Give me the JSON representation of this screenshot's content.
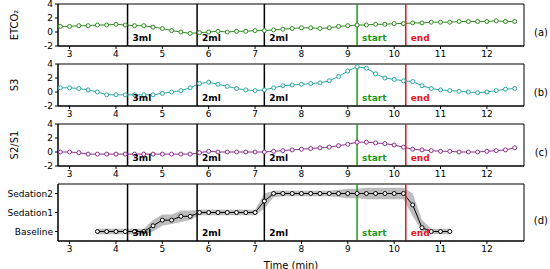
{
  "chart_data": [
    {
      "type": "line",
      "panel": "(a)",
      "y_label": "ETCO₂",
      "color": "#2e8b1e",
      "marker": "circle",
      "line_style": "solid",
      "xlim": [
        2.75,
        12.8
      ],
      "xticks": [
        3,
        4,
        5,
        6,
        7,
        8,
        9,
        10,
        11,
        12
      ],
      "ylim": [
        -2,
        4
      ],
      "yticks": [
        -2,
        0,
        2,
        4
      ],
      "x": [
        2.8,
        3.0,
        3.2,
        3.4,
        3.6,
        3.8,
        4.0,
        4.2,
        4.4,
        4.6,
        4.8,
        5.0,
        5.2,
        5.4,
        5.6,
        5.8,
        6.0,
        6.2,
        6.4,
        6.6,
        6.8,
        7.0,
        7.2,
        7.4,
        7.6,
        7.8,
        8.0,
        8.2,
        8.4,
        8.6,
        8.8,
        9.0,
        9.2,
        9.4,
        9.6,
        9.8,
        10.0,
        10.2,
        10.4,
        10.6,
        10.8,
        11.0,
        11.2,
        11.4,
        11.6,
        11.8,
        12.0,
        12.2,
        12.4,
        12.6
      ],
      "values": [
        0.8,
        0.8,
        0.9,
        0.9,
        1.0,
        1.0,
        1.1,
        1.0,
        0.9,
        0.9,
        0.7,
        0.5,
        0.2,
        0.0,
        -0.2,
        -0.1,
        0.0,
        0.1,
        0.0,
        0.1,
        0.1,
        0.2,
        0.2,
        0.3,
        0.4,
        0.5,
        0.6,
        0.6,
        0.5,
        0.6,
        0.8,
        0.9,
        1.0,
        1.0,
        1.1,
        1.1,
        1.2,
        1.2,
        1.3,
        1.3,
        1.4,
        1.4,
        1.4,
        1.5,
        1.5,
        1.5,
        1.5,
        1.6,
        1.5,
        1.5
      ],
      "annotations": [
        {
          "x": 4.25,
          "label": "3ml",
          "color": "#000000"
        },
        {
          "x": 5.75,
          "label": "2ml",
          "color": "#000000"
        },
        {
          "x": 7.2,
          "label": "2ml",
          "color": "#000000"
        },
        {
          "x": 9.2,
          "label": "start",
          "color": "#1a9a1a"
        },
        {
          "x": 10.25,
          "label": "end",
          "color": "#e8141c"
        }
      ]
    },
    {
      "type": "line",
      "panel": "(b)",
      "y_label": "S3",
      "color": "#2aa7a7",
      "marker": "circle",
      "line_style": "solid",
      "xlim": [
        2.75,
        12.8
      ],
      "xticks": [
        3,
        4,
        5,
        6,
        7,
        8,
        9,
        10,
        11,
        12
      ],
      "ylim": [
        -2,
        4
      ],
      "yticks": [
        -2,
        0,
        2,
        4
      ],
      "x": [
        2.8,
        3.0,
        3.2,
        3.4,
        3.6,
        3.8,
        4.0,
        4.2,
        4.4,
        4.6,
        4.8,
        5.0,
        5.2,
        5.4,
        5.6,
        5.8,
        6.0,
        6.2,
        6.4,
        6.6,
        6.8,
        7.0,
        7.2,
        7.4,
        7.6,
        7.8,
        8.0,
        8.2,
        8.4,
        8.6,
        8.8,
        9.0,
        9.2,
        9.4,
        9.6,
        9.8,
        10.0,
        10.2,
        10.4,
        10.6,
        10.8,
        11.0,
        11.2,
        11.4,
        11.6,
        11.8,
        12.0,
        12.2,
        12.4,
        12.6
      ],
      "values": [
        0.6,
        0.6,
        0.5,
        0.3,
        0.0,
        -0.4,
        -0.4,
        -0.4,
        -0.4,
        -0.4,
        -0.4,
        -0.2,
        0.0,
        0.2,
        0.6,
        1.2,
        1.4,
        1.1,
        0.8,
        0.5,
        0.3,
        0.2,
        0.3,
        0.6,
        0.9,
        1.0,
        1.1,
        1.2,
        1.3,
        1.6,
        2.2,
        3.0,
        3.6,
        3.4,
        2.6,
        2.0,
        1.8,
        1.6,
        1.5,
        0.9,
        0.5,
        0.3,
        0.2,
        0.1,
        0.0,
        -0.1,
        0.0,
        0.2,
        0.4,
        0.5
      ],
      "annotations": [
        {
          "x": 4.25,
          "label": "3ml",
          "color": "#000000"
        },
        {
          "x": 5.75,
          "label": "2ml",
          "color": "#000000"
        },
        {
          "x": 7.2,
          "label": "2ml",
          "color": "#000000"
        },
        {
          "x": 9.2,
          "label": "start",
          "color": "#1a9a1a"
        },
        {
          "x": 10.25,
          "label": "end",
          "color": "#e8141c"
        }
      ]
    },
    {
      "type": "line",
      "panel": "(c)",
      "y_label": "S2/S1",
      "color": "#8b2e8b",
      "marker": "circle",
      "line_style": "solid",
      "xlim": [
        2.75,
        12.8
      ],
      "xticks": [
        3,
        4,
        5,
        6,
        7,
        8,
        9,
        10,
        11,
        12
      ],
      "ylim": [
        -2,
        4
      ],
      "yticks": [
        -2,
        0,
        2,
        4
      ],
      "x": [
        2.8,
        3.0,
        3.2,
        3.4,
        3.6,
        3.8,
        4.0,
        4.2,
        4.4,
        4.6,
        4.8,
        5.0,
        5.2,
        5.4,
        5.6,
        5.8,
        6.0,
        6.2,
        6.4,
        6.6,
        6.8,
        7.0,
        7.2,
        7.4,
        7.6,
        7.8,
        8.0,
        8.2,
        8.4,
        8.6,
        8.8,
        9.0,
        9.2,
        9.4,
        9.6,
        9.8,
        10.0,
        10.2,
        10.4,
        10.6,
        10.8,
        11.0,
        11.2,
        11.4,
        11.6,
        11.8,
        12.0,
        12.2,
        12.4,
        12.6
      ],
      "values": [
        0.0,
        0.0,
        -0.1,
        -0.3,
        -0.3,
        -0.3,
        -0.3,
        -0.3,
        -0.3,
        -0.3,
        -0.3,
        -0.3,
        -0.3,
        -0.3,
        -0.3,
        -0.1,
        0.1,
        0.0,
        0.0,
        0.0,
        0.0,
        0.0,
        0.0,
        0.1,
        0.2,
        0.3,
        0.4,
        0.5,
        0.6,
        0.7,
        0.9,
        1.1,
        1.4,
        1.4,
        1.3,
        1.2,
        1.0,
        0.7,
        0.4,
        0.3,
        0.2,
        0.1,
        0.1,
        0.0,
        0.0,
        0.0,
        0.1,
        0.2,
        0.3,
        0.6
      ],
      "annotations": [
        {
          "x": 4.25,
          "label": "3ml",
          "color": "#000000"
        },
        {
          "x": 5.75,
          "label": "2ml",
          "color": "#000000"
        },
        {
          "x": 7.2,
          "label": "2ml",
          "color": "#000000"
        },
        {
          "x": 9.2,
          "label": "start",
          "color": "#1a9a1a"
        },
        {
          "x": 10.25,
          "label": "end",
          "color": "#e8141c"
        }
      ]
    },
    {
      "type": "line",
      "panel": "(d)",
      "x_label": "Time (min)",
      "color": "#000000",
      "marker": "circle",
      "line_style": "solid",
      "band_color": "#bdbdbd",
      "xlim": [
        2.75,
        12.8
      ],
      "xticks": [
        3,
        4,
        5,
        6,
        7,
        8,
        9,
        10,
        11,
        12
      ],
      "ylim": [
        -0.5,
        2.5
      ],
      "yticks": [
        {
          "value": 0,
          "label": "Baseline"
        },
        {
          "value": 1,
          "label": "Sedation1"
        },
        {
          "value": 2,
          "label": "Sedation2"
        }
      ],
      "x": [
        2.8,
        3.0,
        3.2,
        3.4,
        3.6,
        3.8,
        4.0,
        4.2,
        4.4,
        4.6,
        4.8,
        5.0,
        5.2,
        5.4,
        5.6,
        5.8,
        6.0,
        6.2,
        6.4,
        6.6,
        6.8,
        7.0,
        7.2,
        7.4,
        7.6,
        7.8,
        8.0,
        8.2,
        8.4,
        8.6,
        8.8,
        9.0,
        9.2,
        9.4,
        9.6,
        9.8,
        10.0,
        10.2,
        10.4,
        10.6,
        10.8,
        11.0,
        11.2,
        11.4,
        11.6,
        11.8,
        12.0,
        12.2,
        12.4,
        12.6
      ],
      "values": [
        null,
        null,
        null,
        null,
        0,
        0,
        0,
        0,
        0,
        0,
        0.3,
        0.6,
        0.6,
        0.8,
        0.8,
        1,
        1,
        1,
        1,
        1,
        1,
        1,
        1.6,
        2,
        2,
        2,
        2,
        2,
        2,
        2,
        2,
        2,
        2,
        2,
        2,
        2,
        2,
        2,
        1.4,
        0.2,
        0,
        0,
        0,
        null,
        null,
        null,
        null,
        null,
        null,
        null
      ],
      "band_lower": [
        null,
        null,
        null,
        null,
        -0.15,
        -0.15,
        -0.15,
        -0.15,
        -0.15,
        -0.15,
        0.0,
        0.3,
        0.4,
        0.5,
        0.6,
        0.85,
        0.85,
        0.85,
        0.85,
        0.85,
        0.85,
        0.85,
        1.2,
        1.8,
        1.85,
        1.85,
        1.85,
        1.85,
        1.85,
        1.85,
        1.8,
        1.75,
        1.75,
        1.7,
        1.7,
        1.7,
        1.7,
        1.7,
        0.8,
        0.0,
        -0.15,
        -0.15,
        -0.15,
        null,
        null,
        null,
        null,
        null,
        null,
        null
      ],
      "band_upper": [
        null,
        null,
        null,
        null,
        0.15,
        0.15,
        0.15,
        0.15,
        0.15,
        0.15,
        0.6,
        0.9,
        0.9,
        1.1,
        1.1,
        1.15,
        1.15,
        1.15,
        1.15,
        1.15,
        1.15,
        1.15,
        2.0,
        2.15,
        2.15,
        2.15,
        2.15,
        2.15,
        2.15,
        2.15,
        2.2,
        2.25,
        2.25,
        2.3,
        2.3,
        2.3,
        2.3,
        2.3,
        2.0,
        0.6,
        0.15,
        0.15,
        0.15,
        null,
        null,
        null,
        null,
        null,
        null,
        null
      ],
      "annotations": [
        {
          "x": 4.25,
          "label": "3ml",
          "color": "#000000"
        },
        {
          "x": 5.75,
          "label": "2ml",
          "color": "#000000"
        },
        {
          "x": 7.2,
          "label": "2ml",
          "color": "#000000"
        },
        {
          "x": 9.2,
          "label": "start",
          "color": "#1a9a1a"
        },
        {
          "x": 10.25,
          "label": "end",
          "color": "#e8141c"
        }
      ]
    }
  ]
}
